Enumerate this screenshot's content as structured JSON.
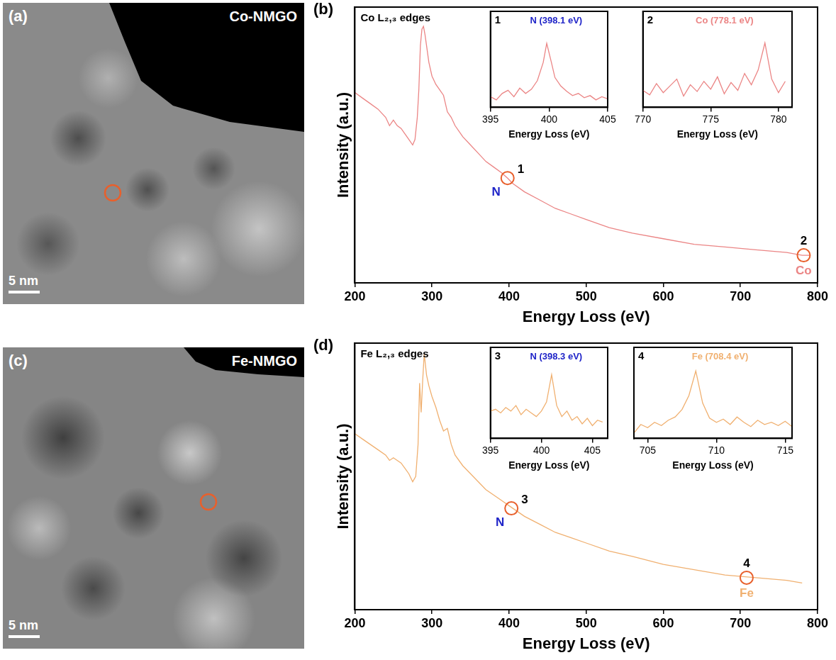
{
  "images": [
    {
      "panel": "(a)",
      "label": "Co-NMGO",
      "scale_bar": "5 nm"
    },
    {
      "panel": "(c)",
      "label": "Fe-NMGO",
      "scale_bar": "5 nm"
    }
  ],
  "chart_data": [
    {
      "panel": "(b)",
      "type": "line",
      "title": "Co L₂,₃ edges",
      "x_label": "Energy Loss (eV)",
      "y_label": "Intensity (a.u.)",
      "x": [
        200,
        210,
        220,
        230,
        240,
        245,
        250,
        255,
        260,
        265,
        270,
        275,
        278,
        281,
        283,
        285,
        287,
        289,
        291,
        293,
        296,
        300,
        305,
        310,
        315,
        320,
        325,
        330,
        340,
        350,
        360,
        370,
        380,
        390,
        398,
        405,
        420,
        440,
        460,
        480,
        500,
        530,
        560,
        600,
        640,
        680,
        720,
        760,
        780,
        790
      ],
      "values": [
        69,
        67,
        65,
        63,
        60,
        57,
        59,
        57,
        56,
        54,
        52,
        50,
        52,
        60,
        70,
        86,
        92,
        93,
        90,
        86,
        80,
        75,
        72,
        70,
        68,
        62,
        60,
        57,
        53,
        50,
        47,
        44,
        42,
        40,
        38,
        36,
        33,
        30,
        27,
        25,
        23,
        20,
        18,
        16,
        14,
        13,
        12,
        11,
        10,
        10
      ],
      "color": "#eb8585",
      "xlim": [
        200,
        800
      ],
      "xticks": [
        200,
        300,
        400,
        500,
        600,
        700,
        800
      ],
      "ylim": [
        0,
        100
      ],
      "tick_labels": "x",
      "annotations": [
        {
          "x": 398,
          "y": 38,
          "label": "1",
          "element": "N"
        },
        {
          "x": 782,
          "y": 10,
          "label": "2",
          "element": "Co"
        }
      ],
      "insets": [
        {
          "panel": "1",
          "type": "line",
          "title": "N (398.1 eV)",
          "x_label": "Energy Loss (eV)",
          "x": [
            395,
            395.5,
            396,
            396.5,
            397,
            397.5,
            398,
            398.5,
            399,
            399.5,
            399.8,
            400.2,
            400.5,
            401,
            401.5,
            402,
            402.5,
            403,
            403.5,
            404,
            404.5,
            405
          ],
          "values": [
            30,
            27,
            33,
            36,
            30,
            38,
            33,
            37,
            45,
            62,
            80,
            62,
            48,
            40,
            35,
            31,
            33,
            29,
            31,
            27,
            30,
            28
          ],
          "color": "#eb8585",
          "xlim": [
            395,
            405
          ],
          "xticks": [
            395,
            400,
            405
          ],
          "ylim": [
            20,
            110
          ],
          "tick_labels": "x"
        },
        {
          "panel": "2",
          "type": "line",
          "title": "Co (778.1 eV)",
          "x_label": "Energy Loss (eV)",
          "x": [
            770,
            770.5,
            771,
            771.5,
            772,
            772.5,
            773,
            773.5,
            774,
            774.5,
            775,
            775.5,
            776,
            776.5,
            777,
            777.5,
            778,
            778.5,
            779,
            779.5,
            780,
            780.5
          ],
          "values": [
            40,
            36,
            46,
            38,
            44,
            50,
            35,
            45,
            39,
            48,
            41,
            52,
            37,
            47,
            40,
            55,
            45,
            58,
            82,
            50,
            38,
            48
          ],
          "color": "#eb8585",
          "xlim": [
            770,
            781
          ],
          "xticks": [
            770,
            775,
            780
          ],
          "ylim": [
            25,
            110
          ],
          "tick_labels": "x"
        }
      ]
    },
    {
      "panel": "(d)",
      "type": "line",
      "title": "Fe L₂,₃ edges",
      "x_label": "Energy Loss (eV)",
      "y_label": "Intensity (a.u.)",
      "x": [
        200,
        210,
        220,
        230,
        240,
        245,
        250,
        255,
        260,
        265,
        270,
        275,
        279,
        282,
        284,
        286,
        288,
        290,
        293,
        296,
        300,
        305,
        310,
        315,
        320,
        325,
        330,
        340,
        350,
        360,
        370,
        380,
        390,
        400,
        410,
        420,
        440,
        460,
        480,
        500,
        530,
        560,
        600,
        640,
        680,
        720,
        760,
        780
      ],
      "values": [
        66,
        64,
        62,
        60,
        58,
        56,
        57,
        56,
        55,
        53,
        51,
        48,
        50,
        62,
        85,
        74,
        86,
        96,
        88,
        84,
        80,
        76,
        71,
        67,
        68,
        62,
        58,
        54,
        51,
        48,
        45,
        43,
        41,
        39,
        37,
        35,
        32,
        29,
        27,
        25,
        22,
        20,
        17,
        15,
        13,
        12,
        11,
        10
      ],
      "color": "#f0b070",
      "xlim": [
        200,
        800
      ],
      "xticks": [
        200,
        300,
        400,
        500,
        600,
        700,
        800
      ],
      "ylim": [
        0,
        100
      ],
      "tick_labels": "x",
      "annotations": [
        {
          "x": 403,
          "y": 38,
          "label": "3",
          "element": "N"
        },
        {
          "x": 708,
          "y": 12,
          "label": "4",
          "element": "Fe"
        }
      ],
      "insets": [
        {
          "panel": "3",
          "type": "line",
          "title": "N (398.3 eV)",
          "x_label": "Energy Loss (eV)",
          "x": [
            395,
            395.5,
            396,
            396.5,
            397,
            397.5,
            398,
            398.5,
            399,
            399.5,
            400,
            400.5,
            401,
            401.5,
            402,
            402.5,
            403,
            403.5,
            404,
            404.5,
            405,
            405.5,
            406
          ],
          "values": [
            55,
            56,
            54,
            57,
            55,
            58,
            53,
            56,
            54,
            52,
            55,
            60,
            75,
            58,
            52,
            55,
            50,
            52,
            48,
            51,
            47,
            50,
            49
          ],
          "color": "#f0b070",
          "xlim": [
            395,
            406.5
          ],
          "xticks": [
            395,
            400,
            405
          ],
          "ylim": [
            40,
            90
          ],
          "tick_labels": "x"
        },
        {
          "panel": "4",
          "type": "line",
          "title": "Fe (708.4 eV)",
          "x_label": "Energy Loss (eV)",
          "x": [
            704,
            704.5,
            705,
            705.5,
            706,
            706.5,
            707,
            707.5,
            708,
            708.5,
            709,
            709.5,
            710,
            710.5,
            711,
            711.5,
            712,
            712.5,
            713,
            713.5,
            714,
            714.5,
            715,
            715.5
          ],
          "values": [
            30,
            38,
            35,
            40,
            37,
            42,
            45,
            52,
            65,
            88,
            58,
            44,
            40,
            43,
            38,
            45,
            40,
            36,
            42,
            38,
            40,
            37,
            41,
            36
          ],
          "color": "#f0b070",
          "xlim": [
            704,
            715.5
          ],
          "xticks": [
            705,
            710,
            715
          ],
          "ylim": [
            25,
            110
          ],
          "tick_labels": "x"
        }
      ]
    }
  ]
}
